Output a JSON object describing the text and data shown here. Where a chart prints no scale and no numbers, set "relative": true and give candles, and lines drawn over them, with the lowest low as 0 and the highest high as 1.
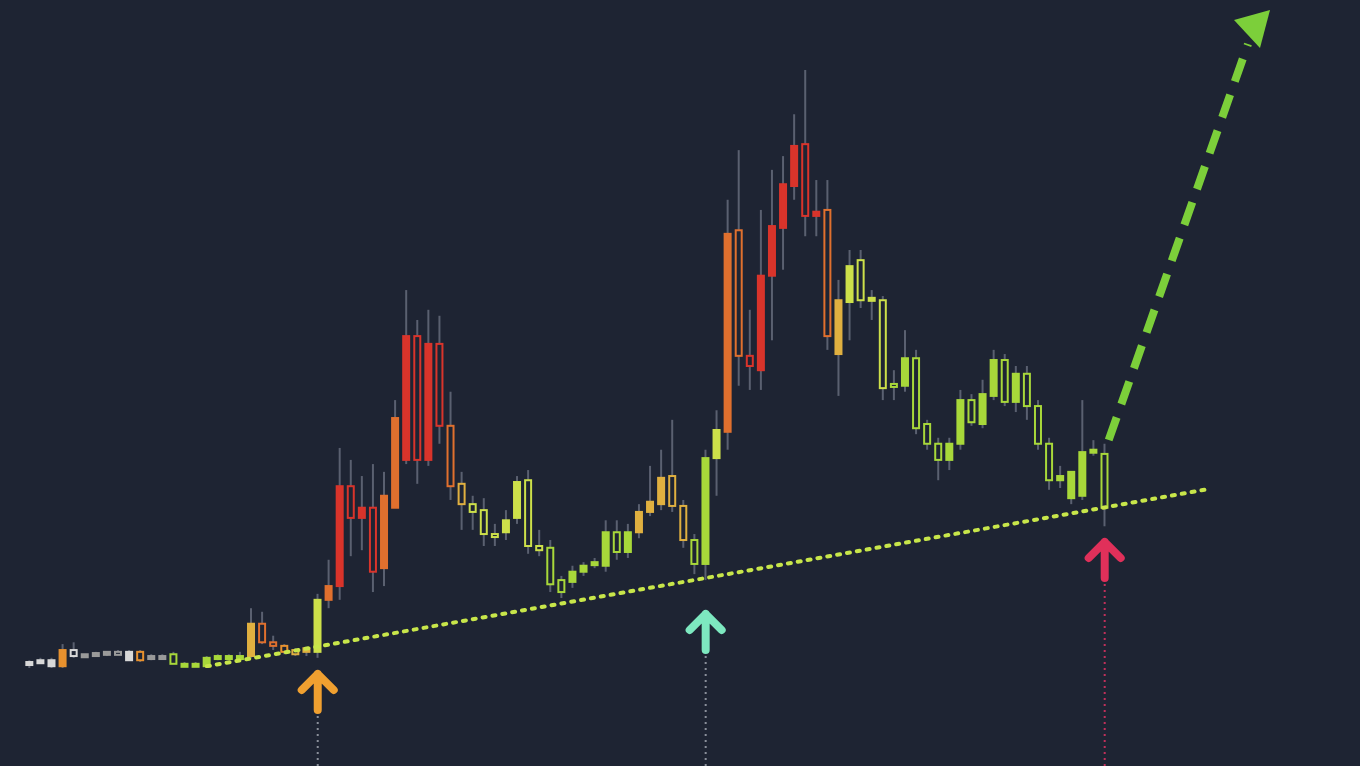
{
  "chart_data": {
    "type": "candlestick",
    "relative": true,
    "categories": [
      null,
      null,
      null,
      null,
      null,
      null,
      null,
      null,
      null,
      null,
      null,
      null,
      null,
      null,
      null,
      null,
      null,
      null,
      null,
      null,
      null,
      null,
      null,
      null,
      null,
      null,
      null,
      null,
      null,
      null,
      null,
      null,
      null,
      null,
      null,
      null,
      null,
      null,
      null,
      null,
      null,
      null,
      null,
      null,
      null,
      null,
      null,
      null,
      null,
      null,
      null,
      null,
      null,
      null,
      null,
      null,
      null,
      null,
      null,
      null,
      null,
      null,
      null,
      null,
      null,
      null,
      null,
      null,
      null,
      null,
      null,
      null,
      null,
      null,
      null,
      null,
      null,
      null,
      null,
      null,
      null,
      null,
      null,
      null,
      null,
      null,
      null,
      null,
      null,
      null,
      null,
      null,
      null,
      null,
      null,
      null,
      null,
      null,
      null,
      null,
      null,
      null,
      null,
      null,
      null,
      null,
      null
    ],
    "ohlc": [
      [
        0.007,
        0.013,
        0,
        0.01
      ],
      [
        0.01,
        0.017,
        0.007,
        0.013
      ],
      [
        0.003,
        0.017,
        0,
        0.013
      ],
      [
        0.003,
        0.04,
        0,
        0.03
      ],
      [
        0.03,
        0.043,
        0.017,
        0.02
      ],
      [
        0.02,
        0.023,
        0.017,
        0.023
      ],
      [
        0.023,
        0.027,
        0.02,
        0.025
      ],
      [
        0.023,
        0.027,
        0.02,
        0.027
      ],
      [
        0.027,
        0.03,
        0.023,
        0.023
      ],
      [
        0.013,
        0.03,
        0.013,
        0.027
      ],
      [
        0.027,
        0.03,
        0.01,
        0.013
      ],
      [
        0.017,
        0.023,
        0.013,
        0.02
      ],
      [
        0.02,
        0.023,
        0.017,
        0.02
      ],
      [
        0.023,
        0.027,
        0.007,
        0.007
      ],
      [
        0.007,
        0.01,
        0.003,
        0.007
      ],
      [
        0.007,
        0.01,
        0.003,
        0.007
      ],
      [
        0.003,
        0.02,
        0,
        0.017
      ],
      [
        0.017,
        0.023,
        0.013,
        0.02
      ],
      [
        0.02,
        0.023,
        0.017,
        0.02
      ],
      [
        0.02,
        0.027,
        0.017,
        0.02
      ],
      [
        0.02,
        0.1,
        0.017,
        0.074
      ],
      [
        0.074,
        0.094,
        0.04,
        0.043
      ],
      [
        0.043,
        0.054,
        0.03,
        0.037
      ],
      [
        0.037,
        0.04,
        0.023,
        0.027
      ],
      [
        0.03,
        0.033,
        0.02,
        0.023
      ],
      [
        0.027,
        0.033,
        0.02,
        0.033
      ],
      [
        0.027,
        0.124,
        0.017,
        0.114
      ],
      [
        0.114,
        0.181,
        0.1,
        0.137
      ],
      [
        0.137,
        0.368,
        0.114,
        0.304
      ],
      [
        0.304,
        0.348,
        0.187,
        0.251
      ],
      [
        0.251,
        0.321,
        0.197,
        0.268
      ],
      [
        0.268,
        0.341,
        0.127,
        0.161
      ],
      [
        0.167,
        0.328,
        0.137,
        0.288
      ],
      [
        0.268,
        0.448,
        0.268,
        0.418
      ],
      [
        0.348,
        0.632,
        0.341,
        0.555
      ],
      [
        0.555,
        0.582,
        0.308,
        0.348
      ],
      [
        0.348,
        0.599,
        0.338,
        0.542
      ],
      [
        0.542,
        0.589,
        0.375,
        0.405
      ],
      [
        0.405,
        0.462,
        0.281,
        0.304
      ],
      [
        0.308,
        0.328,
        0.231,
        0.274
      ],
      [
        0.274,
        0.288,
        0.231,
        0.261
      ],
      [
        0.264,
        0.284,
        0.204,
        0.224
      ],
      [
        0.224,
        0.241,
        0.204,
        0.221
      ],
      [
        0.227,
        0.264,
        0.214,
        0.247
      ],
      [
        0.251,
        0.321,
        0.241,
        0.311
      ],
      [
        0.314,
        0.331,
        0.191,
        0.204
      ],
      [
        0.204,
        0.231,
        0.187,
        0.197
      ],
      [
        0.201,
        0.214,
        0.127,
        0.14
      ],
      [
        0.147,
        0.154,
        0.117,
        0.127
      ],
      [
        0.144,
        0.171,
        0.134,
        0.161
      ],
      [
        0.161,
        0.177,
        0.154,
        0.171
      ],
      [
        0.174,
        0.184,
        0.167,
        0.177
      ],
      [
        0.171,
        0.247,
        0.161,
        0.227
      ],
      [
        0.227,
        0.247,
        0.181,
        0.194
      ],
      [
        0.194,
        0.241,
        0.184,
        0.227
      ],
      [
        0.227,
        0.274,
        0.217,
        0.261
      ],
      [
        0.261,
        0.338,
        0.254,
        0.278
      ],
      [
        0.274,
        0.365,
        0.264,
        0.318
      ],
      [
        0.321,
        0.415,
        0.261,
        0.271
      ],
      [
        0.271,
        0.281,
        0.201,
        0.214
      ],
      [
        0.214,
        0.224,
        0.157,
        0.174
      ],
      [
        0.174,
        0.365,
        0.147,
        0.351
      ],
      [
        0.351,
        0.431,
        0.288,
        0.398
      ],
      [
        0.395,
        0.783,
        0.365,
        0.726
      ],
      [
        0.732,
        0.866,
        0.472,
        0.522
      ],
      [
        0.522,
        0.599,
        0.465,
        0.505
      ],
      [
        0.498,
        0.766,
        0.465,
        0.656
      ],
      [
        0.656,
        0.833,
        0.548,
        0.739
      ],
      [
        0.736,
        0.856,
        0.666,
        0.809
      ],
      [
        0.806,
        0.926,
        0.783,
        0.873
      ],
      [
        0.876,
        1,
        0.722,
        0.756
      ],
      [
        0.756,
        0.816,
        0.722,
        0.763
      ],
      [
        0.766,
        0.816,
        0.532,
        0.555
      ],
      [
        0.525,
        0.649,
        0.455,
        0.615
      ],
      [
        0.612,
        0.699,
        0.548,
        0.672
      ],
      [
        0.682,
        0.699,
        0.602,
        0.615
      ],
      [
        0.615,
        0.632,
        0.582,
        0.619
      ],
      [
        0.615,
        0.622,
        0.448,
        0.468
      ],
      [
        0.475,
        0.498,
        0.448,
        0.472
      ],
      [
        0.472,
        0.565,
        0.462,
        0.518
      ],
      [
        0.518,
        0.532,
        0.391,
        0.401
      ],
      [
        0.408,
        0.415,
        0.365,
        0.375
      ],
      [
        0.375,
        0.385,
        0.314,
        0.348
      ],
      [
        0.348,
        0.385,
        0.331,
        0.375
      ],
      [
        0.375,
        0.465,
        0.365,
        0.448
      ],
      [
        0.448,
        0.458,
        0.405,
        0.411
      ],
      [
        0.408,
        0.482,
        0.401,
        0.458
      ],
      [
        0.455,
        0.532,
        0.448,
        0.515
      ],
      [
        0.515,
        0.525,
        0.438,
        0.445
      ],
      [
        0.445,
        0.505,
        0.428,
        0.492
      ],
      [
        0.492,
        0.505,
        0.415,
        0.438
      ],
      [
        0.438,
        0.448,
        0.365,
        0.375
      ],
      [
        0.375,
        0.385,
        0.298,
        0.314
      ],
      [
        0.314,
        0.338,
        0.301,
        0.321
      ],
      [
        0.284,
        0.328,
        0.274,
        0.328
      ],
      [
        0.288,
        0.448,
        0.281,
        0.361
      ],
      [
        0.361,
        0.381,
        0.355,
        0.365
      ],
      [
        0.358,
        0.375,
        0.237,
        0.268
      ],
      null,
      null,
      null,
      null,
      null,
      null,
      null,
      null,
      null
    ],
    "colors": [
      "#d8d8d8",
      "#d8d8d8",
      "#d8d8d8",
      "#e8912e",
      "#d8d8d8",
      "#9a9a9a",
      "#9a9a9a",
      "#9a9a9a",
      "#9a9a9a",
      "#d8d8d8",
      "#e8912e",
      "#9a9a9a",
      "#9a9a9a",
      "#a8d83a",
      "#a8d83a",
      "#a8d83a",
      "#a8d83a",
      "#a8d83a",
      "#a8d83a",
      "#a8d83a",
      "#e0b040",
      "#e0702e",
      "#e0702e",
      "#e8912e",
      "#e0b040",
      "#e0b040",
      "#cde04a",
      "#e0702e",
      "#d9342b",
      "#d9342b",
      "#d9342b",
      "#d9342b",
      "#e0702e",
      "#e0702e",
      "#d9342b",
      "#d9342b",
      "#d9342b",
      "#d9342b",
      "#e0702e",
      "#e0b040",
      "#cde04a",
      "#cde04a",
      "#cde04a",
      "#cde04a",
      "#cde04a",
      "#cde04a",
      "#cde04a",
      "#a8d83a",
      "#a8d83a",
      "#a8d83a",
      "#a8d83a",
      "#a8d83a",
      "#a8d83a",
      "#a8d83a",
      "#a8d83a",
      "#e0b040",
      "#e0b040",
      "#e0b040",
      "#e0b040",
      "#e0b040",
      "#a8d83a",
      "#a8d83a",
      "#cde04a",
      "#e0702e",
      "#e0702e",
      "#d9342b",
      "#d9342b",
      "#d9342b",
      "#d9342b",
      "#d9342b",
      "#d9342b",
      "#d9342b",
      "#e0702e",
      "#e0b040",
      "#cde04a",
      "#cde04a",
      "#cde04a",
      "#cde04a",
      "#a8d83a",
      "#a8d83a",
      "#a8d83a",
      "#a8d83a",
      "#a8d83a",
      "#a8d83a",
      "#a8d83a",
      "#a8d83a",
      "#a8d83a",
      "#a8d83a",
      "#a8d83a",
      "#a8d83a",
      "#a8d83a",
      "#a8d83a",
      "#a8d83a",
      "#a8d83a",
      "#a8d83a",
      "#a8d83a",
      "#a8d83a",
      "#a8d83a",
      null,
      null,
      null,
      null,
      null,
      null,
      null,
      null,
      null
    ],
    "series": [
      {
        "type": "line",
        "color": "#c8e64a",
        "line_style": "dotted",
        "values": [
          null,
          null,
          null,
          null,
          null,
          null,
          null,
          null,
          null,
          null,
          null,
          null,
          null,
          null,
          null,
          null,
          0.003,
          null,
          null,
          null,
          null,
          null,
          null,
          null,
          null,
          null,
          null,
          null,
          null,
          null,
          null,
          null,
          null,
          null,
          null,
          null,
          null,
          null,
          null,
          null,
          null,
          null,
          null,
          null,
          null,
          null,
          null,
          null,
          null,
          null,
          null,
          null,
          null,
          null,
          null,
          null,
          null,
          null,
          null,
          null,
          null,
          null,
          null,
          null,
          null,
          null,
          null,
          null,
          null,
          null,
          null,
          null,
          null,
          null,
          null,
          null,
          null,
          null,
          null,
          null,
          null,
          null,
          null,
          null,
          null,
          null,
          null,
          null,
          null,
          null,
          null,
          null,
          null,
          null,
          null,
          null,
          null,
          null,
          null,
          null,
          null,
          null,
          null,
          null,
          null,
          null,
          0.298
        ]
      }
    ]
  }
}
